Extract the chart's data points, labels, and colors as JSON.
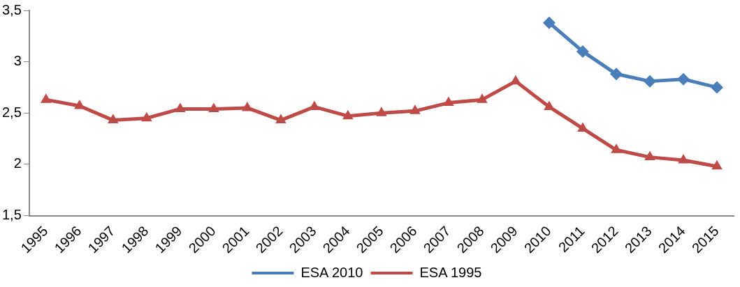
{
  "chart_data": {
    "type": "line",
    "categories": [
      "1995",
      "1996",
      "1997",
      "1998",
      "1999",
      "2000",
      "2001",
      "2002",
      "2003",
      "2004",
      "2005",
      "2006",
      "2007",
      "2008",
      "2009",
      "2010",
      "2011",
      "2012",
      "2013",
      "2014",
      "2015"
    ],
    "series": [
      {
        "name": "ESA 2010",
        "color": "#4a7ebb",
        "marker": "diamond",
        "values": [
          null,
          null,
          null,
          null,
          null,
          null,
          null,
          null,
          null,
          null,
          null,
          null,
          null,
          null,
          null,
          3.38,
          3.1,
          2.88,
          2.81,
          2.83,
          2.75
        ]
      },
      {
        "name": "ESA 1995",
        "color": "#be4b48",
        "marker": "triangle",
        "values": [
          2.63,
          2.57,
          2.43,
          2.45,
          2.54,
          2.54,
          2.55,
          2.43,
          2.56,
          2.47,
          2.5,
          2.52,
          2.6,
          2.63,
          2.81,
          2.56,
          2.35,
          2.14,
          2.07,
          2.04,
          1.98
        ]
      }
    ],
    "ylim": [
      1.5,
      3.5
    ],
    "yticks": [
      {
        "value": 1.5,
        "label": "1,5"
      },
      2,
      {
        "value": 2.5,
        "label": "2,5"
      },
      3,
      {
        "value": 3.5,
        "label": "3,5"
      }
    ],
    "grid": false,
    "legend": "bottom",
    "line_style": "solid"
  }
}
